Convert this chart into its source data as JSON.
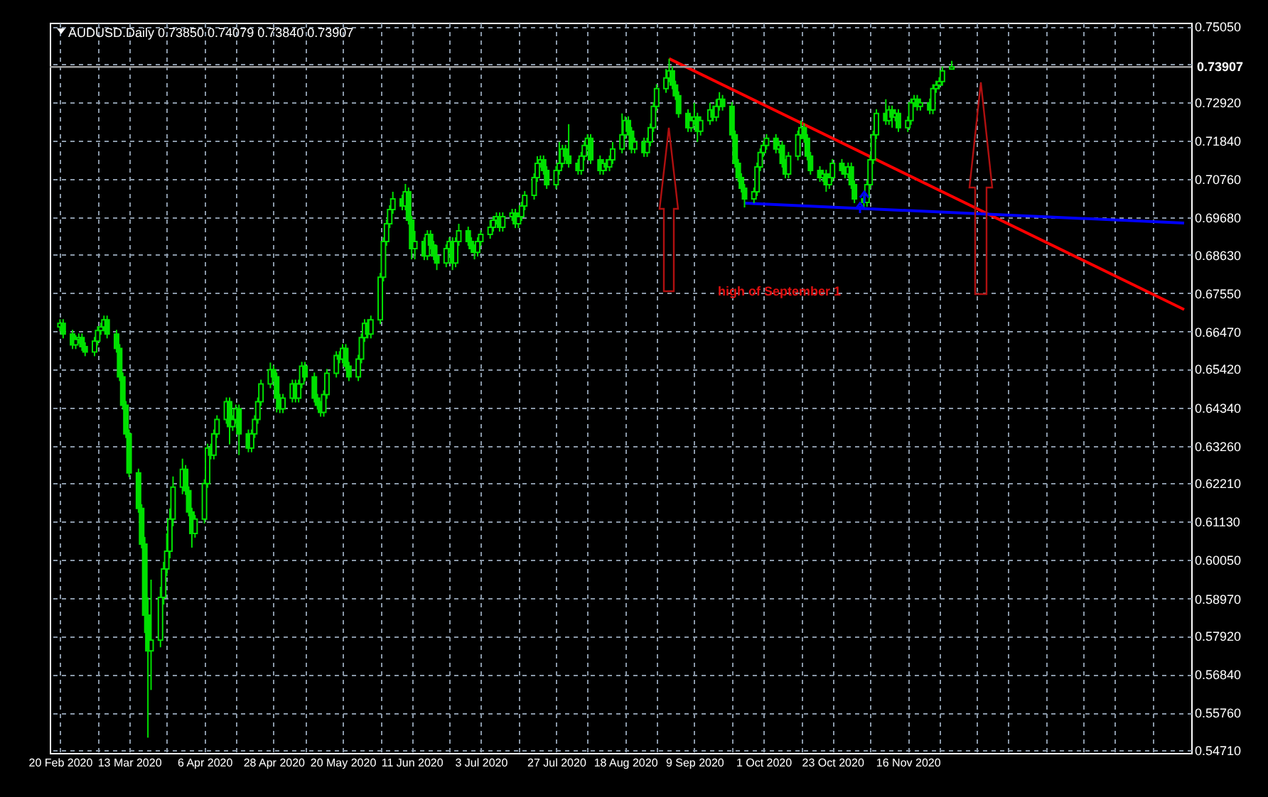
{
  "chart_data": {
    "type": "candlestick",
    "title": "AUDUSD.Daily 0.73850 0.74079 0.73840 0.73907",
    "color": "#00e000",
    "grid": true,
    "x": [
      "2020-02-20",
      "2020-02-21",
      "2020-02-24",
      "2020-02-25",
      "2020-02-26",
      "2020-02-27",
      "2020-02-28",
      "2020-03-02",
      "2020-03-03",
      "2020-03-04",
      "2020-03-05",
      "2020-03-06",
      "2020-03-09",
      "2020-03-10",
      "2020-03-11",
      "2020-03-12",
      "2020-03-13",
      "2020-03-16",
      "2020-03-17",
      "2020-03-18",
      "2020-03-19",
      "2020-03-20",
      "2020-03-23",
      "2020-03-24",
      "2020-03-25",
      "2020-03-26",
      "2020-03-27",
      "2020-03-30",
      "2020-03-31",
      "2020-04-01",
      "2020-04-02",
      "2020-04-03",
      "2020-04-06",
      "2020-04-07",
      "2020-04-08",
      "2020-04-09",
      "2020-04-10",
      "2020-04-13",
      "2020-04-14",
      "2020-04-15",
      "2020-04-16",
      "2020-04-17",
      "2020-04-20",
      "2020-04-21",
      "2020-04-22",
      "2020-04-23",
      "2020-04-24",
      "2020-04-27",
      "2020-04-28",
      "2020-04-29",
      "2020-04-30",
      "2020-05-01",
      "2020-05-04",
      "2020-05-05",
      "2020-05-06",
      "2020-05-07",
      "2020-05-08",
      "2020-05-11",
      "2020-05-12",
      "2020-05-13",
      "2020-05-14",
      "2020-05-15",
      "2020-05-18",
      "2020-05-19",
      "2020-05-20",
      "2020-05-21",
      "2020-05-22",
      "2020-05-25",
      "2020-05-26",
      "2020-05-27",
      "2020-05-28",
      "2020-05-29",
      "2020-06-01",
      "2020-06-02",
      "2020-06-03",
      "2020-06-04",
      "2020-06-05",
      "2020-06-08",
      "2020-06-09",
      "2020-06-10",
      "2020-06-11",
      "2020-06-12",
      "2020-06-15",
      "2020-06-16",
      "2020-06-17",
      "2020-06-18",
      "2020-06-19",
      "2020-06-22",
      "2020-06-23",
      "2020-06-24",
      "2020-06-25",
      "2020-06-26",
      "2020-06-29",
      "2020-06-30",
      "2020-07-01",
      "2020-07-02",
      "2020-07-03",
      "2020-07-06",
      "2020-07-07",
      "2020-07-08",
      "2020-07-09",
      "2020-07-10",
      "2020-07-13",
      "2020-07-14",
      "2020-07-15",
      "2020-07-16",
      "2020-07-17",
      "2020-07-20",
      "2020-07-21",
      "2020-07-22",
      "2020-07-23",
      "2020-07-24",
      "2020-07-27",
      "2020-07-28",
      "2020-07-29",
      "2020-07-30",
      "2020-07-31",
      "2020-08-03",
      "2020-08-04",
      "2020-08-05",
      "2020-08-06",
      "2020-08-07",
      "2020-08-10",
      "2020-08-11",
      "2020-08-12",
      "2020-08-13",
      "2020-08-14",
      "2020-08-17",
      "2020-08-18",
      "2020-08-19",
      "2020-08-20",
      "2020-08-21",
      "2020-08-24",
      "2020-08-25",
      "2020-08-26",
      "2020-08-27",
      "2020-08-28",
      "2020-08-31",
      "2020-09-01",
      "2020-09-02",
      "2020-09-03",
      "2020-09-04",
      "2020-09-07",
      "2020-09-08",
      "2020-09-09",
      "2020-09-10",
      "2020-09-11",
      "2020-09-14",
      "2020-09-15",
      "2020-09-16",
      "2020-09-17",
      "2020-09-18",
      "2020-09-21",
      "2020-09-22",
      "2020-09-23",
      "2020-09-24",
      "2020-09-25",
      "2020-09-28",
      "2020-09-29",
      "2020-09-30",
      "2020-10-01",
      "2020-10-02",
      "2020-10-05",
      "2020-10-06",
      "2020-10-07",
      "2020-10-08",
      "2020-10-09",
      "2020-10-12",
      "2020-10-13",
      "2020-10-14",
      "2020-10-15",
      "2020-10-16",
      "2020-10-19",
      "2020-10-20",
      "2020-10-21",
      "2020-10-22",
      "2020-10-23",
      "2020-10-26",
      "2020-10-27",
      "2020-10-28",
      "2020-10-29",
      "2020-10-30",
      "2020-11-02",
      "2020-11-03",
      "2020-11-04",
      "2020-11-05",
      "2020-11-06",
      "2020-11-09",
      "2020-11-10",
      "2020-11-11",
      "2020-11-12",
      "2020-11-13",
      "2020-11-16",
      "2020-11-17",
      "2020-11-18",
      "2020-11-19",
      "2020-11-20",
      "2020-11-23",
      "2020-11-24",
      "2020-11-25",
      "2020-11-26",
      "2020-11-27",
      "2020-11-30"
    ],
    "ohlc": [
      [
        0.666,
        0.6682,
        0.6648,
        0.667
      ],
      [
        0.667,
        0.6682,
        0.6628,
        0.664
      ],
      [
        0.664,
        0.6652,
        0.6598,
        0.661
      ],
      [
        0.661,
        0.6637,
        0.6598,
        0.6625
      ],
      [
        0.6625,
        0.6642,
        0.6613,
        0.663
      ],
      [
        0.663,
        0.6642,
        0.6593,
        0.6605
      ],
      [
        0.6605,
        0.6617,
        0.6578,
        0.659
      ],
      [
        0.659,
        0.6632,
        0.6578,
        0.662
      ],
      [
        0.662,
        0.6662,
        0.6608,
        0.665
      ],
      [
        0.665,
        0.6672,
        0.6638,
        0.666
      ],
      [
        0.666,
        0.6692,
        0.6648,
        0.668
      ],
      [
        0.668,
        0.6692,
        0.6628,
        0.664
      ],
      [
        0.664,
        0.6652,
        0.6588,
        0.66
      ],
      [
        0.66,
        0.6612,
        0.6508,
        0.652
      ],
      [
        0.652,
        0.6532,
        0.6428,
        0.644
      ],
      [
        0.644,
        0.6452,
        0.6348,
        0.636
      ],
      [
        0.636,
        0.6372,
        0.6238,
        0.625
      ],
      [
        0.625,
        0.6262,
        0.6138,
        0.615
      ],
      [
        0.615,
        0.6162,
        0.6038,
        0.605
      ],
      [
        0.605,
        0.607,
        0.58,
        0.585
      ],
      [
        0.585,
        0.59,
        0.5506,
        0.575
      ],
      [
        0.575,
        0.595,
        0.564,
        0.578
      ],
      [
        0.578,
        0.593,
        0.576,
        0.59
      ],
      [
        0.59,
        0.6,
        0.588,
        0.598
      ],
      [
        0.598,
        0.608,
        0.596,
        0.603
      ],
      [
        0.603,
        0.615,
        0.601,
        0.612
      ],
      [
        0.612,
        0.624,
        0.61,
        0.621
      ],
      [
        0.621,
        0.629,
        0.619,
        0.626
      ],
      [
        0.626,
        0.6272,
        0.6188,
        0.62
      ],
      [
        0.62,
        0.6212,
        0.6128,
        0.614
      ],
      [
        0.614,
        0.6152,
        0.604,
        0.608
      ],
      [
        0.608,
        0.6132,
        0.6068,
        0.612
      ],
      [
        0.612,
        0.6232,
        0.6108,
        0.622
      ],
      [
        0.622,
        0.6332,
        0.6208,
        0.632
      ],
      [
        0.632,
        0.6332,
        0.6288,
        0.63
      ],
      [
        0.63,
        0.6372,
        0.6288,
        0.636
      ],
      [
        0.636,
        0.6412,
        0.6348,
        0.64
      ],
      [
        0.64,
        0.6462,
        0.6388,
        0.645
      ],
      [
        0.645,
        0.6462,
        0.633,
        0.638
      ],
      [
        0.638,
        0.6412,
        0.6368,
        0.64
      ],
      [
        0.64,
        0.6442,
        0.6388,
        0.643
      ],
      [
        0.643,
        0.6442,
        0.63,
        0.636
      ],
      [
        0.636,
        0.6372,
        0.6308,
        0.632
      ],
      [
        0.632,
        0.6372,
        0.6308,
        0.636
      ],
      [
        0.636,
        0.6412,
        0.6348,
        0.64
      ],
      [
        0.64,
        0.6462,
        0.6388,
        0.645
      ],
      [
        0.645,
        0.6512,
        0.6438,
        0.65
      ],
      [
        0.65,
        0.656,
        0.6488,
        0.654
      ],
      [
        0.654,
        0.6552,
        0.6508,
        0.652
      ],
      [
        0.652,
        0.6532,
        0.642,
        0.646
      ],
      [
        0.646,
        0.6472,
        0.6418,
        0.643
      ],
      [
        0.643,
        0.6472,
        0.6418,
        0.646
      ],
      [
        0.646,
        0.6512,
        0.6448,
        0.65
      ],
      [
        0.65,
        0.6512,
        0.6448,
        0.646
      ],
      [
        0.646,
        0.6512,
        0.6448,
        0.65
      ],
      [
        0.65,
        0.6562,
        0.6488,
        0.655
      ],
      [
        0.655,
        0.6562,
        0.6508,
        0.652
      ],
      [
        0.652,
        0.6532,
        0.6448,
        0.646
      ],
      [
        0.646,
        0.6472,
        0.6428,
        0.644
      ],
      [
        0.644,
        0.6452,
        0.6408,
        0.642
      ],
      [
        0.642,
        0.6482,
        0.6408,
        0.647
      ],
      [
        0.647,
        0.6542,
        0.6458,
        0.653
      ],
      [
        0.653,
        0.6592,
        0.6518,
        0.658
      ],
      [
        0.658,
        0.6592,
        0.6558,
        0.657
      ],
      [
        0.657,
        0.6612,
        0.6558,
        0.66
      ],
      [
        0.66,
        0.6612,
        0.6538,
        0.655
      ],
      [
        0.655,
        0.6562,
        0.6508,
        0.652
      ],
      [
        0.652,
        0.6582,
        0.6508,
        0.657
      ],
      [
        0.657,
        0.6642,
        0.6558,
        0.663
      ],
      [
        0.663,
        0.6682,
        0.6618,
        0.667
      ],
      [
        0.667,
        0.6682,
        0.6628,
        0.664
      ],
      [
        0.664,
        0.6692,
        0.6628,
        0.668
      ],
      [
        0.668,
        0.6812,
        0.6668,
        0.68
      ],
      [
        0.68,
        0.6912,
        0.6788,
        0.69
      ],
      [
        0.69,
        0.6962,
        0.6888,
        0.695
      ],
      [
        0.695,
        0.7002,
        0.6938,
        0.699
      ],
      [
        0.699,
        0.704,
        0.6978,
        0.702
      ],
      [
        0.702,
        0.7032,
        0.6988,
        0.7
      ],
      [
        0.7,
        0.7062,
        0.6988,
        0.704
      ],
      [
        0.704,
        0.7052,
        0.6948,
        0.696
      ],
      [
        0.696,
        0.6972,
        0.685,
        0.688
      ],
      [
        0.688,
        0.693,
        0.685,
        0.69
      ],
      [
        0.69,
        0.6912,
        0.6848,
        0.686
      ],
      [
        0.686,
        0.6932,
        0.6848,
        0.692
      ],
      [
        0.692,
        0.6932,
        0.6878,
        0.689
      ],
      [
        0.689,
        0.6902,
        0.6848,
        0.686
      ],
      [
        0.686,
        0.689,
        0.682,
        0.684
      ],
      [
        0.684,
        0.6892,
        0.6828,
        0.688
      ],
      [
        0.688,
        0.6912,
        0.6868,
        0.69
      ],
      [
        0.69,
        0.6912,
        0.682,
        0.684
      ],
      [
        0.684,
        0.6912,
        0.6828,
        0.69
      ],
      [
        0.69,
        0.695,
        0.6888,
        0.693
      ],
      [
        0.693,
        0.6942,
        0.6888,
        0.69
      ],
      [
        0.69,
        0.6912,
        0.6868,
        0.688
      ],
      [
        0.688,
        0.6892,
        0.685,
        0.687
      ],
      [
        0.687,
        0.6912,
        0.6858,
        0.69
      ],
      [
        0.69,
        0.6932,
        0.6888,
        0.692
      ],
      [
        0.692,
        0.696,
        0.6908,
        0.694
      ],
      [
        0.694,
        0.6972,
        0.6928,
        0.696
      ],
      [
        0.696,
        0.6982,
        0.6948,
        0.697
      ],
      [
        0.697,
        0.6982,
        0.6928,
        0.694
      ],
      [
        0.694,
        0.6982,
        0.6928,
        0.697
      ],
      [
        0.697,
        0.6992,
        0.6958,
        0.698
      ],
      [
        0.698,
        0.6992,
        0.6938,
        0.695
      ],
      [
        0.695,
        0.6982,
        0.6938,
        0.697
      ],
      [
        0.697,
        0.7012,
        0.6958,
        0.7
      ],
      [
        0.7,
        0.7042,
        0.6988,
        0.703
      ],
      [
        0.703,
        0.7092,
        0.7018,
        0.708
      ],
      [
        0.708,
        0.714,
        0.7068,
        0.712
      ],
      [
        0.712,
        0.7142,
        0.7108,
        0.713
      ],
      [
        0.713,
        0.7142,
        0.7088,
        0.71
      ],
      [
        0.71,
        0.7112,
        0.7048,
        0.706
      ],
      [
        0.706,
        0.7112,
        0.7048,
        0.71
      ],
      [
        0.71,
        0.718,
        0.7088,
        0.712
      ],
      [
        0.712,
        0.7172,
        0.7108,
        0.716
      ],
      [
        0.716,
        0.7172,
        0.7128,
        0.714
      ],
      [
        0.714,
        0.723,
        0.7108,
        0.712
      ],
      [
        0.712,
        0.7132,
        0.7088,
        0.71
      ],
      [
        0.71,
        0.7152,
        0.7088,
        0.714
      ],
      [
        0.714,
        0.7182,
        0.7128,
        0.717
      ],
      [
        0.717,
        0.7202,
        0.7158,
        0.719
      ],
      [
        0.719,
        0.7202,
        0.7118,
        0.713
      ],
      [
        0.713,
        0.7142,
        0.7088,
        0.71
      ],
      [
        0.71,
        0.7132,
        0.7088,
        0.712
      ],
      [
        0.712,
        0.7132,
        0.7098,
        0.711
      ],
      [
        0.711,
        0.7142,
        0.7098,
        0.713
      ],
      [
        0.713,
        0.718,
        0.7118,
        0.716
      ],
      [
        0.716,
        0.726,
        0.7148,
        0.72
      ],
      [
        0.72,
        0.7252,
        0.7188,
        0.724
      ],
      [
        0.724,
        0.7252,
        0.7198,
        0.721
      ],
      [
        0.721,
        0.7222,
        0.7148,
        0.716
      ],
      [
        0.716,
        0.7192,
        0.7148,
        0.718
      ],
      [
        0.718,
        0.7192,
        0.7138,
        0.715
      ],
      [
        0.715,
        0.7192,
        0.7138,
        0.718
      ],
      [
        0.718,
        0.7232,
        0.7168,
        0.722
      ],
      [
        0.722,
        0.7292,
        0.7208,
        0.728
      ],
      [
        0.728,
        0.7342,
        0.7268,
        0.733
      ],
      [
        0.733,
        0.7385,
        0.7318,
        0.736
      ],
      [
        0.736,
        0.7414,
        0.7348,
        0.738
      ],
      [
        0.738,
        0.7392,
        0.7328,
        0.734
      ],
      [
        0.734,
        0.7352,
        0.7298,
        0.731
      ],
      [
        0.731,
        0.7322,
        0.7248,
        0.726
      ],
      [
        0.726,
        0.7272,
        0.7208,
        0.722
      ],
      [
        0.722,
        0.7252,
        0.7208,
        0.724
      ],
      [
        0.724,
        0.729,
        0.7228,
        0.725
      ],
      [
        0.725,
        0.7262,
        0.718,
        0.721
      ],
      [
        0.721,
        0.7252,
        0.7198,
        0.724
      ],
      [
        0.724,
        0.729,
        0.7228,
        0.727
      ],
      [
        0.727,
        0.7282,
        0.7238,
        0.725
      ],
      [
        0.725,
        0.73,
        0.7238,
        0.728
      ],
      [
        0.728,
        0.732,
        0.7268,
        0.73
      ],
      [
        0.73,
        0.7312,
        0.7268,
        0.728
      ],
      [
        0.728,
        0.7292,
        0.7188,
        0.72
      ],
      [
        0.72,
        0.7212,
        0.7108,
        0.712
      ],
      [
        0.712,
        0.7132,
        0.7068,
        0.708
      ],
      [
        0.708,
        0.7092,
        0.7038,
        0.705
      ],
      [
        0.705,
        0.7062,
        0.6996,
        0.702
      ],
      [
        0.702,
        0.7052,
        0.7008,
        0.704
      ],
      [
        0.704,
        0.7122,
        0.7028,
        0.711
      ],
      [
        0.711,
        0.7162,
        0.7098,
        0.715
      ],
      [
        0.715,
        0.7182,
        0.7138,
        0.717
      ],
      [
        0.717,
        0.7202,
        0.7158,
        0.719
      ],
      [
        0.719,
        0.7202,
        0.7148,
        0.716
      ],
      [
        0.716,
        0.7182,
        0.7148,
        0.717
      ],
      [
        0.717,
        0.7182,
        0.7108,
        0.712
      ],
      [
        0.712,
        0.7132,
        0.7078,
        0.709
      ],
      [
        0.709,
        0.7152,
        0.7078,
        0.714
      ],
      [
        0.714,
        0.7212,
        0.7128,
        0.72
      ],
      [
        0.72,
        0.724,
        0.7188,
        0.722
      ],
      [
        0.722,
        0.7232,
        0.7178,
        0.719
      ],
      [
        0.719,
        0.7202,
        0.7128,
        0.714
      ],
      [
        0.714,
        0.7152,
        0.7088,
        0.71
      ],
      [
        0.71,
        0.7112,
        0.7068,
        0.708
      ],
      [
        0.708,
        0.7102,
        0.7068,
        0.709
      ],
      [
        0.709,
        0.7102,
        0.704,
        0.706
      ],
      [
        0.706,
        0.7092,
        0.7048,
        0.708
      ],
      [
        0.708,
        0.7132,
        0.7068,
        0.712
      ],
      [
        0.712,
        0.7132,
        0.7088,
        0.71
      ],
      [
        0.71,
        0.7112,
        0.7078,
        0.709
      ],
      [
        0.709,
        0.7122,
        0.7078,
        0.711
      ],
      [
        0.711,
        0.7122,
        0.7048,
        0.706
      ],
      [
        0.706,
        0.7072,
        0.7008,
        0.702
      ],
      [
        0.702,
        0.7032,
        0.6995,
        0.701
      ],
      [
        0.701,
        0.7072,
        0.6998,
        0.706
      ],
      [
        0.706,
        0.7142,
        0.7048,
        0.713
      ],
      [
        0.713,
        0.7212,
        0.7118,
        0.72
      ],
      [
        0.72,
        0.7272,
        0.7188,
        0.726
      ],
      [
        0.726,
        0.73,
        0.7228,
        0.724
      ],
      [
        0.724,
        0.7282,
        0.7228,
        0.727
      ],
      [
        0.727,
        0.7282,
        0.722,
        0.725
      ],
      [
        0.725,
        0.7272,
        0.7238,
        0.726
      ],
      [
        0.726,
        0.7272,
        0.7208,
        0.722
      ],
      [
        0.722,
        0.7252,
        0.7208,
        0.724
      ],
      [
        0.724,
        0.7302,
        0.7228,
        0.729
      ],
      [
        0.729,
        0.7312,
        0.7278,
        0.73
      ],
      [
        0.73,
        0.7312,
        0.7268,
        0.728
      ],
      [
        0.728,
        0.7302,
        0.7268,
        0.729
      ],
      [
        0.729,
        0.7302,
        0.7258,
        0.727
      ],
      [
        0.727,
        0.7342,
        0.7258,
        0.733
      ],
      [
        0.733,
        0.7352,
        0.7318,
        0.734
      ],
      [
        0.734,
        0.7362,
        0.7328,
        0.735
      ],
      [
        0.735,
        0.7392,
        0.7338,
        0.738
      ],
      [
        0.7385,
        0.74079,
        0.7384,
        0.73907
      ]
    ],
    "series": [
      {
        "type": "line",
        "color": "#ff0000",
        "x": [
          "2020-09-01",
          "2021-02-12"
        ],
        "values": [
          0.7414,
          0.6709
        ]
      },
      {
        "type": "line",
        "color": "#0000ff",
        "x": [
          "2020-09-25",
          "2021-02-12"
        ],
        "values": [
          0.7008,
          0.6952
        ]
      }
    ],
    "ref_lines": [
      {
        "axis": "y",
        "value": 0.73907,
        "label": "0.73907",
        "color": "#a0a0a0"
      }
    ],
    "annotations": [
      "high of September 1"
    ],
    "xlim": [
      "2020-02-19",
      "2021-02-12"
    ],
    "xticks": [
      {
        "value": "2020-02-20",
        "label": "20 Feb 2020"
      },
      {
        "value": "2020-03-03",
        "label": null
      },
      {
        "value": "2020-03-13",
        "label": "13 Mar 2020"
      },
      {
        "value": "2020-03-25",
        "label": null
      },
      {
        "value": "2020-04-06",
        "label": "6 Apr 2020"
      },
      {
        "value": "2020-04-16",
        "label": null
      },
      {
        "value": "2020-04-28",
        "label": "28 Apr 2020"
      },
      {
        "value": "2020-05-08",
        "label": null
      },
      {
        "value": "2020-05-20",
        "label": "20 May 2020"
      },
      {
        "value": "2020-06-01",
        "label": null
      },
      {
        "value": "2020-06-11",
        "label": "11 Jun 2020"
      },
      {
        "value": "2020-06-23",
        "label": null
      },
      {
        "value": "2020-07-03",
        "label": "3 Jul 2020"
      },
      {
        "value": "2020-07-15",
        "label": null
      },
      {
        "value": "2020-07-27",
        "label": "27 Jul 2020"
      },
      {
        "value": "2020-08-06",
        "label": null
      },
      {
        "value": "2020-08-18",
        "label": "18 Aug 2020"
      },
      {
        "value": "2020-08-28",
        "label": null
      },
      {
        "value": "2020-09-09",
        "label": "9 Sep 2020"
      },
      {
        "value": "2020-09-21",
        "label": null
      },
      {
        "value": "2020-10-01",
        "label": "1 Oct 2020"
      },
      {
        "value": "2020-10-13",
        "label": null
      },
      {
        "value": "2020-10-23",
        "label": "23 Oct 2020"
      },
      {
        "value": "2020-11-04",
        "label": null
      },
      {
        "value": "2020-11-16",
        "label": "16 Nov 2020"
      },
      {
        "value": "2020-11-26",
        "label": null
      },
      {
        "value": "2020-12-08",
        "label": null
      },
      {
        "value": "2020-12-18",
        "label": null
      },
      {
        "value": "2020-12-30",
        "label": null
      },
      {
        "value": "2021-01-11",
        "label": null
      },
      {
        "value": "2021-01-21",
        "label": null
      },
      {
        "value": "2021-02-02",
        "label": null
      }
    ],
    "ylim": [
      0.5463,
      0.7515
    ],
    "yticks": [
      {
        "value": 0.7505,
        "label": "0.75050"
      },
      {
        "value": 0.7399,
        "label": null
      },
      {
        "value": 0.7292,
        "label": "0.72920"
      },
      {
        "value": 0.7184,
        "label": "0.71840"
      },
      {
        "value": 0.7076,
        "label": "0.70760"
      },
      {
        "value": 0.6968,
        "label": "0.69680"
      },
      {
        "value": 0.6863,
        "label": "0.68630"
      },
      {
        "value": 0.6755,
        "label": "0.67550"
      },
      {
        "value": 0.6647,
        "label": "0.66470"
      },
      {
        "value": 0.6542,
        "label": "0.65420"
      },
      {
        "value": 0.6434,
        "label": "0.64340"
      },
      {
        "value": 0.6326,
        "label": "0.63260"
      },
      {
        "value": 0.6221,
        "label": "0.62210"
      },
      {
        "value": 0.6113,
        "label": "0.61130"
      },
      {
        "value": 0.6005,
        "label": "0.60050"
      },
      {
        "value": 0.5897,
        "label": "0.58970"
      },
      {
        "value": 0.5792,
        "label": "0.57920"
      },
      {
        "value": 0.5684,
        "label": "0.56840"
      },
      {
        "value": 0.5576,
        "label": "0.55760"
      },
      {
        "value": 0.5471,
        "label": "0.54710"
      }
    ]
  }
}
